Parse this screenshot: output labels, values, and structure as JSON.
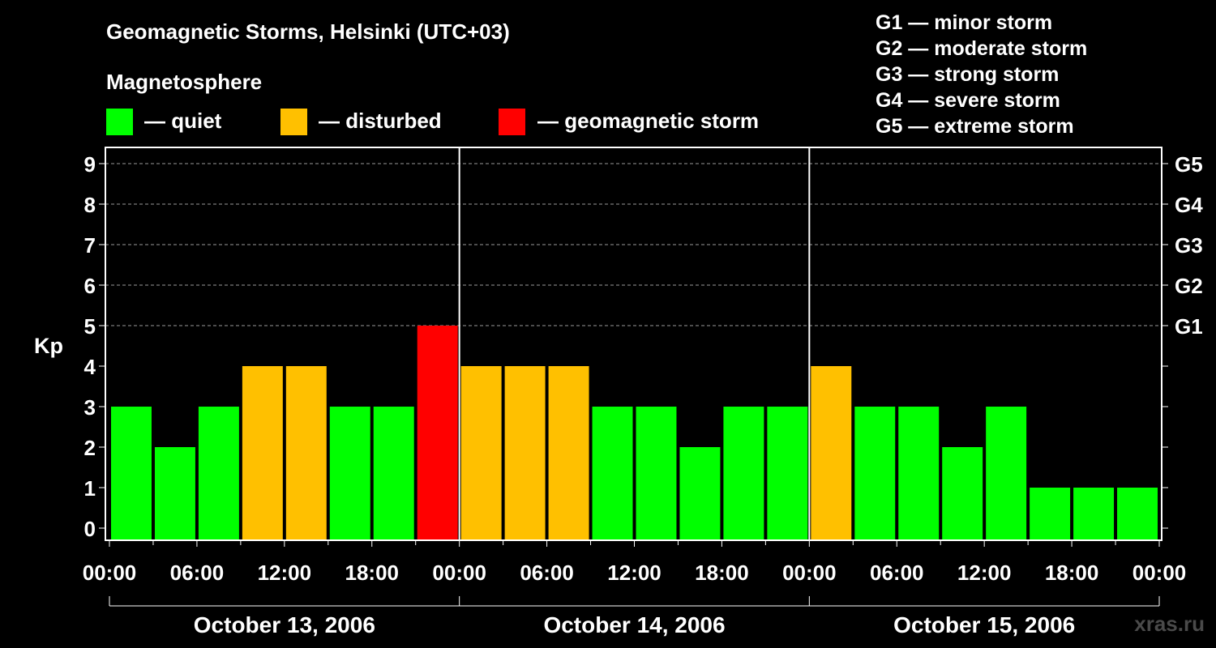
{
  "title": "Geomagnetic Storms, Helsinki (UTC+03)",
  "subtitle": "Magnetosphere",
  "legend": [
    {
      "label": "— quiet",
      "color": "#00ff00"
    },
    {
      "label": "— disturbed",
      "color": "#ffc000"
    },
    {
      "label": "— geomagnetic storm",
      "color": "#ff0000"
    }
  ],
  "storm_scale": [
    "G1 — minor storm",
    "G2 — moderate storm",
    "G3 — strong storm",
    "G4 — severe storm",
    "G5 — extreme storm"
  ],
  "watermark": "xras.ru",
  "chart_data": {
    "type": "bar",
    "ylabel": "Kp",
    "ylim": [
      0,
      9
    ],
    "y_ticks": [
      "0",
      "1",
      "2",
      "3",
      "4",
      "5",
      "6",
      "7",
      "8",
      "9"
    ],
    "right_ticks": [
      {
        "kp": 5,
        "label": "G1"
      },
      {
        "kp": 6,
        "label": "G2"
      },
      {
        "kp": 7,
        "label": "G3"
      },
      {
        "kp": 8,
        "label": "G4"
      },
      {
        "kp": 9,
        "label": "G5"
      }
    ],
    "x_ticks": [
      "00:00",
      "06:00",
      "12:00",
      "18:00",
      "00:00",
      "06:00",
      "12:00",
      "18:00",
      "00:00",
      "06:00",
      "12:00",
      "18:00",
      "00:00"
    ],
    "days": [
      "October 13, 2006",
      "October 14, 2006",
      "October 15, 2006"
    ],
    "interval_hours": 3,
    "values": [
      3,
      2,
      3,
      4,
      4,
      3,
      3,
      5,
      4,
      4,
      4,
      3,
      3,
      2,
      3,
      3,
      4,
      3,
      3,
      2,
      3,
      1,
      1,
      1
    ],
    "colors": {
      "quiet": "#00ff00",
      "disturbed": "#ffc000",
      "storm": "#ff0000"
    },
    "grid": true
  }
}
